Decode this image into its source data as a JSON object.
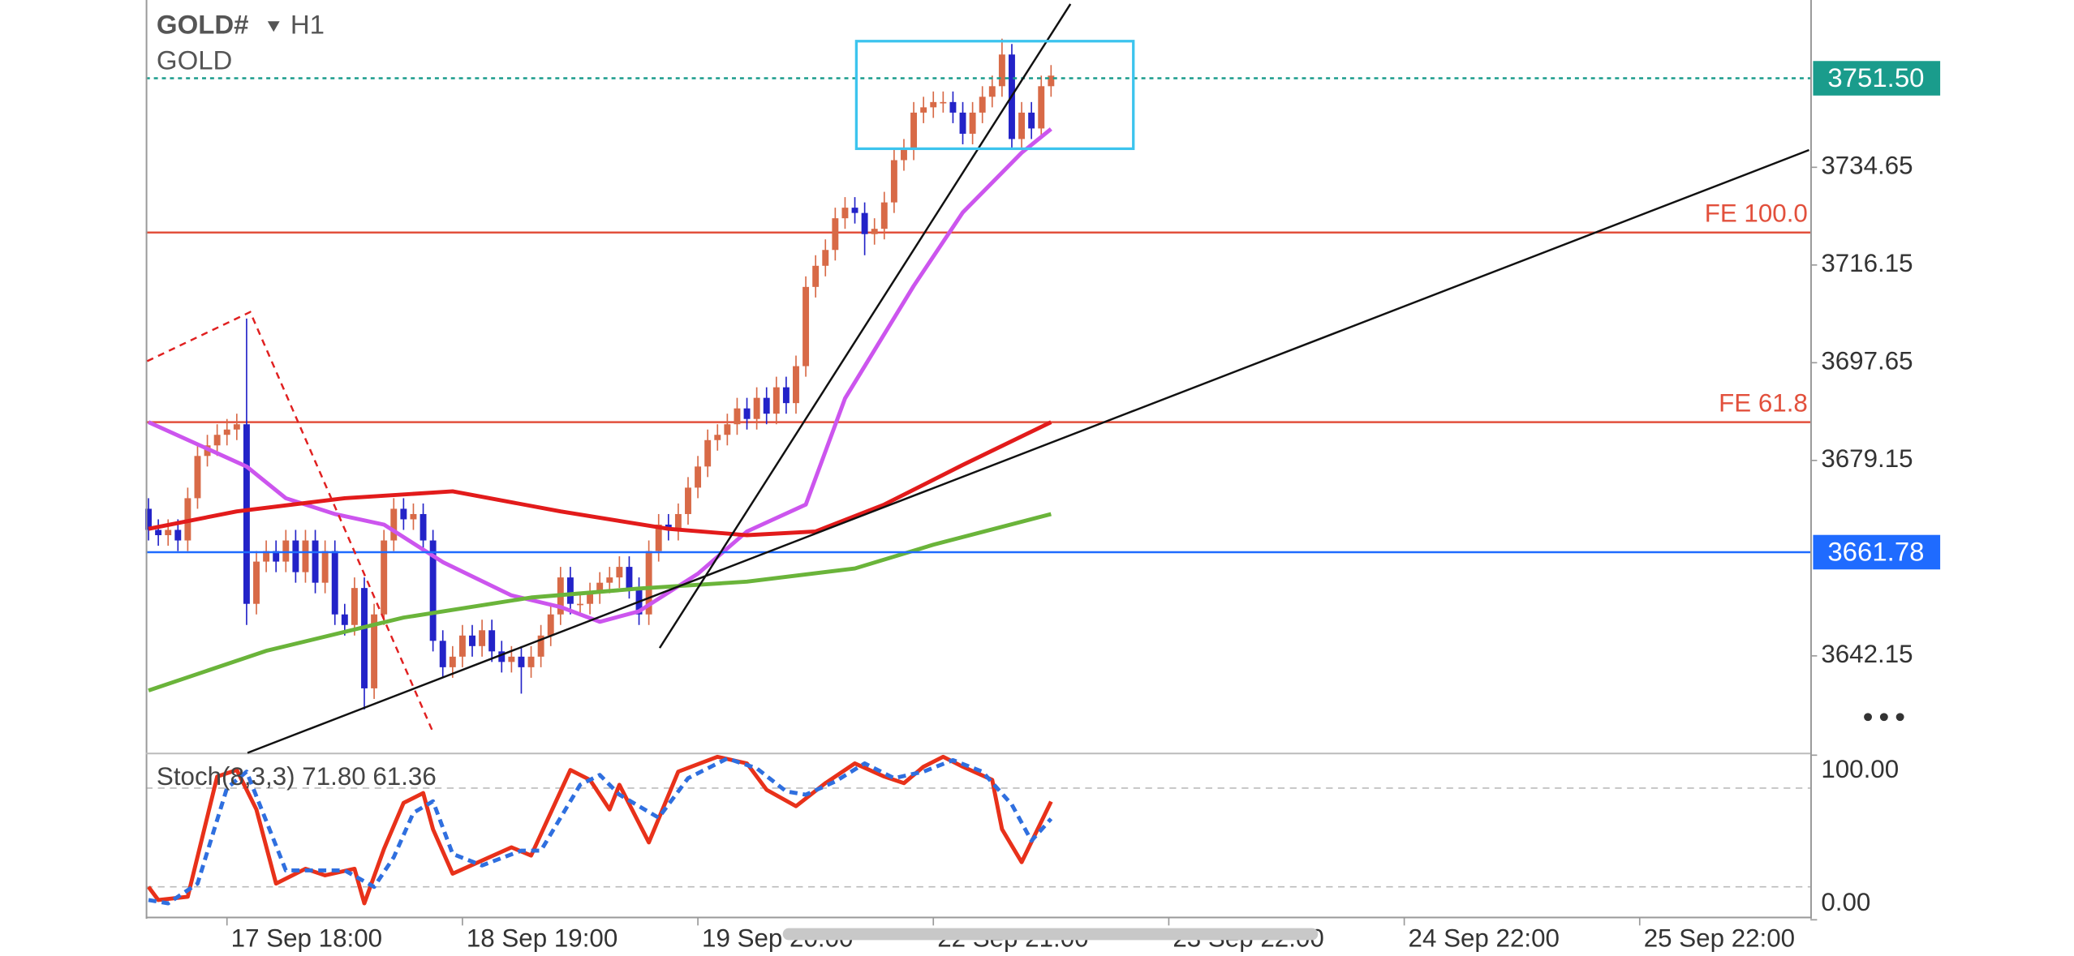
{
  "header": {
    "symbol": "GOLD#",
    "timeframe": "H1",
    "name": "GOLD"
  },
  "chart_data": [
    {
      "type": "candlestick",
      "up_color": "#d86a47",
      "down_color": "#2323c8",
      "open": [
        3670,
        3666,
        3665,
        3666,
        3664,
        3672,
        3680,
        3682,
        3684,
        3685,
        3686,
        3652,
        3660,
        3662,
        3660,
        3664,
        3658,
        3664,
        3656,
        3662,
        3650,
        3648,
        3655,
        3636,
        3650,
        3664,
        3670,
        3668,
        3669,
        3664,
        3645,
        3640,
        3642,
        3646,
        3644,
        3647,
        3643,
        3641,
        3642,
        3640,
        3642,
        3646,
        3650,
        3657,
        3652,
        3652,
        3654,
        3656,
        3657,
        3659,
        3655,
        3650,
        3662,
        3667,
        3666,
        3669,
        3674,
        3678,
        3683,
        3684,
        3686,
        3689,
        3687,
        3691,
        3688,
        3693,
        3690,
        3697,
        3712,
        3716,
        3719,
        3725,
        3727,
        3726,
        3722,
        3723,
        3728,
        3736,
        3738,
        3745,
        3746,
        3747,
        3747,
        3745,
        3741,
        3745,
        3748,
        3750,
        3756,
        3740,
        3745,
        3742,
        3750
      ],
      "high": [
        3672,
        3668,
        3668,
        3668,
        3674,
        3682,
        3684,
        3686,
        3687,
        3688,
        3706,
        3662,
        3664,
        3664,
        3666,
        3666,
        3666,
        3666,
        3664,
        3664,
        3652,
        3657,
        3657,
        3652,
        3666,
        3672,
        3672,
        3671,
        3671,
        3666,
        3647,
        3644,
        3648,
        3648,
        3649,
        3649,
        3645,
        3644,
        3644,
        3644,
        3648,
        3652,
        3659,
        3659,
        3654,
        3656,
        3658,
        3659,
        3661,
        3661,
        3657,
        3664,
        3669,
        3669,
        3671,
        3676,
        3680,
        3685,
        3686,
        3688,
        3691,
        3691,
        3693,
        3693,
        3695,
        3695,
        3699,
        3714,
        3718,
        3721,
        3727,
        3729,
        3729,
        3728,
        3725,
        3730,
        3738,
        3740,
        3747,
        3748,
        3749,
        3749,
        3749,
        3747,
        3747,
        3750,
        3752,
        3759,
        3758,
        3747,
        3747,
        3752,
        3754
      ],
      "low": [
        3664,
        3663,
        3663,
        3662,
        3662,
        3670,
        3678,
        3680,
        3682,
        3683,
        3648,
        3650,
        3658,
        3658,
        3658,
        3656,
        3656,
        3654,
        3654,
        3648,
        3646,
        3646,
        3632,
        3634,
        3648,
        3662,
        3666,
        3666,
        3662,
        3643,
        3638,
        3638,
        3640,
        3642,
        3642,
        3641,
        3639,
        3639,
        3635,
        3638,
        3640,
        3644,
        3648,
        3650,
        3650,
        3650,
        3652,
        3654,
        3655,
        3653,
        3648,
        3648,
        3660,
        3664,
        3664,
        3667,
        3672,
        3676,
        3681,
        3682,
        3684,
        3685,
        3685,
        3686,
        3686,
        3688,
        3688,
        3695,
        3710,
        3714,
        3717,
        3723,
        3724,
        3718,
        3720,
        3721,
        3726,
        3734,
        3736,
        3743,
        3744,
        3745,
        3743,
        3739,
        3739,
        3743,
        3746,
        3748,
        3738,
        3738,
        3740,
        3740,
        3748
      ],
      "close": [
        3666,
        3665,
        3666,
        3664,
        3672,
        3680,
        3682,
        3684,
        3685,
        3686,
        3652,
        3660,
        3662,
        3660,
        3664,
        3658,
        3664,
        3656,
        3662,
        3650,
        3648,
        3655,
        3636,
        3650,
        3664,
        3670,
        3668,
        3669,
        3664,
        3645,
        3640,
        3642,
        3646,
        3644,
        3647,
        3643,
        3641,
        3642,
        3640,
        3642,
        3646,
        3650,
        3657,
        3652,
        3652,
        3654,
        3656,
        3657,
        3659,
        3655,
        3650,
        3662,
        3667,
        3666,
        3669,
        3674,
        3678,
        3683,
        3684,
        3686,
        3689,
        3687,
        3691,
        3688,
        3693,
        3690,
        3697,
        3712,
        3716,
        3719,
        3725,
        3727,
        3726,
        3722,
        3723,
        3728,
        3736,
        3738,
        3745,
        3746,
        3747,
        3747,
        3745,
        3741,
        3745,
        3748,
        3750,
        3756,
        3740,
        3745,
        3742,
        3750,
        3752
      ],
      "xlim": [
        -0.27,
        169.4
      ],
      "ylim": [
        3623.79,
        3766.32
      ],
      "yticks": [
        3642.15,
        3679.15,
        3697.65,
        3716.15,
        3734.65
      ],
      "xticks": [
        {
          "value": 8,
          "label": "17 Sep 18:00"
        },
        {
          "value": 32,
          "label": "18 Sep 19:00"
        },
        {
          "value": 56,
          "label": "19 Sep 20:00"
        },
        {
          "value": 80,
          "label": "22 Sep 21:00"
        },
        {
          "value": 104,
          "label": "23 Sep 22:00"
        },
        {
          "value": 128,
          "label": "24 Sep 22:00"
        },
        {
          "value": 152,
          "label": "25 Sep 22:00"
        }
      ],
      "lines": [
        {
          "color": "#cc55ee",
          "x": [
            0,
            10,
            14,
            19,
            24,
            30,
            37,
            42,
            46,
            50,
            56,
            61,
            67,
            71,
            78,
            83,
            89,
            92
          ],
          "values": [
            3686.4,
            3678,
            3672,
            3669,
            3667,
            3659.9,
            3653.6,
            3651.4,
            3648.6,
            3650.6,
            3657.7,
            3665.7,
            3670.8,
            3690.9,
            3712.2,
            3726.1,
            3737.4,
            3741.9
          ]
        },
        {
          "color": "#e21b1b",
          "x": [
            0,
            9,
            20,
            31,
            42,
            53,
            61,
            68,
            75,
            83,
            92
          ],
          "values": [
            3666.2,
            3669.5,
            3672,
            3673.3,
            3669.5,
            3666.2,
            3665,
            3665.7,
            3670.8,
            3678.3,
            3686.4
          ]
        },
        {
          "color": "#6ab43a",
          "x": [
            0,
            12,
            26,
            39,
            50,
            61,
            72,
            80,
            92
          ],
          "values": [
            3635.6,
            3643.1,
            3649.4,
            3653.2,
            3654.9,
            3656.2,
            3658.7,
            3663.2,
            3669
          ]
        }
      ],
      "levels": [
        {
          "label": "FE 100.0",
          "value": 3722.3,
          "color": "#e2503c"
        },
        {
          "label": "FE 61.8",
          "value": 3686.4,
          "color": "#e2503c"
        }
      ],
      "price_lines": [
        {
          "value": 3661.78,
          "label": "3661.78",
          "color": "#1f6bff",
          "dashed": false
        },
        {
          "value": 3751.5,
          "label": "3751.50",
          "color": "#1a9c8c",
          "dashed": true
        }
      ]
    },
    {
      "type": "line",
      "title": "Stoch(8,3,3) 71.80 61.36",
      "xlim": [
        -0.27,
        169.4
      ],
      "ylim": [
        2.2,
        100.6
      ],
      "yticks": [
        {
          "value": 100,
          "label": "100.00"
        },
        {
          "value": 0,
          "label": "0.00"
        }
      ],
      "levels": [
        80,
        20
      ],
      "series": [
        {
          "color": "#e8311a",
          "dashed": false,
          "x": [
            0,
            1,
            4,
            7,
            9,
            11,
            13,
            16,
            18,
            21,
            22,
            24,
            26,
            28,
            29,
            31,
            34,
            37,
            39,
            43,
            45,
            47,
            48,
            51,
            54,
            58,
            61,
            63,
            66,
            69,
            72,
            75,
            77,
            79,
            81,
            83,
            86,
            87,
            89,
            92
          ],
          "values": [
            20,
            12,
            14,
            87,
            91,
            67,
            22,
            31,
            27,
            31,
            10,
            43,
            71,
            77,
            55,
            28,
            36,
            44,
            39,
            91,
            85,
            67,
            82,
            47,
            90,
            99,
            95,
            79,
            69,
            83,
            95,
            87,
            83,
            93,
            99,
            93,
            85,
            55,
            35,
            71.8
          ]
        },
        {
          "color": "#2f6fdf",
          "dashed": true,
          "x": [
            0,
            2,
            5,
            8,
            10,
            12,
            14,
            17,
            20,
            23,
            25,
            27,
            29,
            31,
            34,
            38,
            40,
            44,
            46,
            48,
            52,
            55,
            59,
            62,
            65,
            67,
            70,
            73,
            76,
            79,
            82,
            85,
            88,
            90,
            92
          ],
          "values": [
            12,
            10,
            22,
            80,
            90,
            60,
            30,
            30,
            30,
            20,
            38,
            65,
            72,
            40,
            33,
            42,
            42,
            82,
            88,
            76,
            62,
            86,
            98,
            92,
            78,
            76,
            84,
            95,
            86,
            90,
            97,
            90,
            70,
            48,
            61.36
          ]
        }
      ]
    }
  ]
}
